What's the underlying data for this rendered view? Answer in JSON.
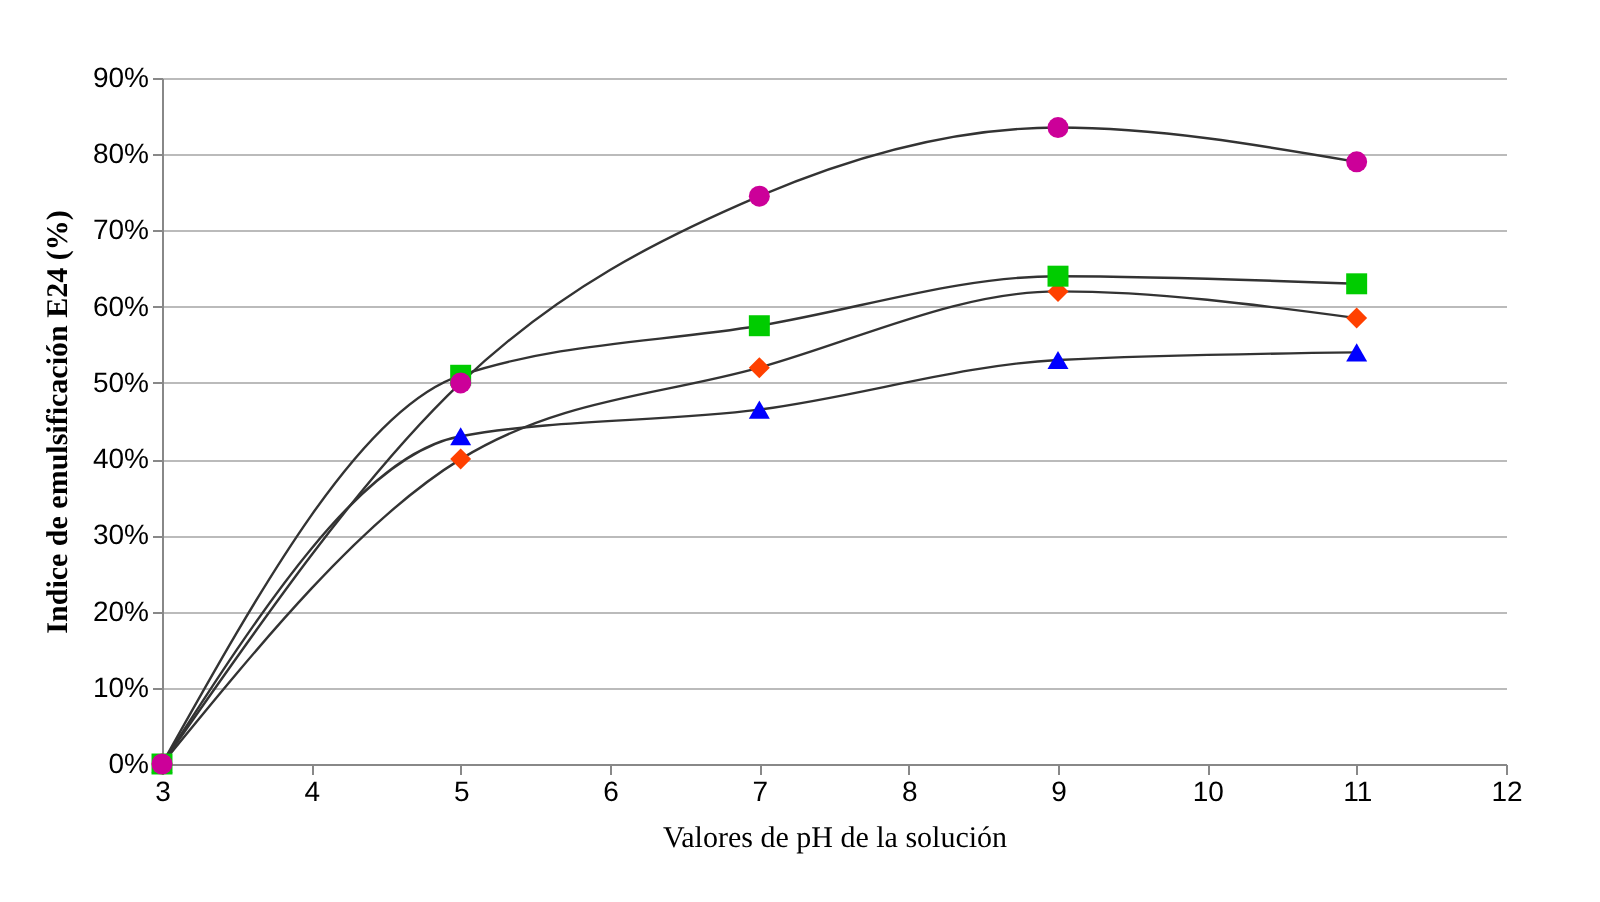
{
  "chart_data": {
    "type": "line",
    "xlabel": "Valores de pH de la solución",
    "ylabel": "Indice de emulsificación E24 (%)",
    "x": [
      3,
      5,
      7,
      9,
      11
    ],
    "series": [
      {
        "color": "#cc0099",
        "marker": "circle",
        "values": [
          0,
          50,
          74.5,
          83.5,
          79
        ]
      },
      {
        "color": "#00cc00",
        "marker": "square",
        "values": [
          0,
          51,
          57.5,
          64,
          63
        ]
      },
      {
        "color": "#ff4000",
        "marker": "diamond",
        "values": [
          0,
          40,
          52,
          62,
          58.5
        ]
      },
      {
        "color": "#0000ff",
        "marker": "triangle",
        "values": [
          0,
          43,
          46.5,
          53,
          54
        ]
      }
    ],
    "xlim": [
      3,
      12
    ],
    "xticks": [
      3,
      4,
      5,
      6,
      7,
      8,
      9,
      10,
      11,
      12
    ],
    "ylim": [
      0,
      90
    ],
    "yticks": [
      {
        "value": 0,
        "label": "0%"
      },
      {
        "value": 10,
        "label": "10%"
      },
      {
        "value": 20,
        "label": "20%"
      },
      {
        "value": 30,
        "label": "30%"
      },
      {
        "value": 40,
        "label": "40%"
      },
      {
        "value": 50,
        "label": "50%"
      },
      {
        "value": 60,
        "label": "60%"
      },
      {
        "value": 70,
        "label": "70%"
      },
      {
        "value": 80,
        "label": "80%"
      },
      {
        "value": 90,
        "label": "90%"
      }
    ],
    "grid": "y",
    "legend": false
  }
}
